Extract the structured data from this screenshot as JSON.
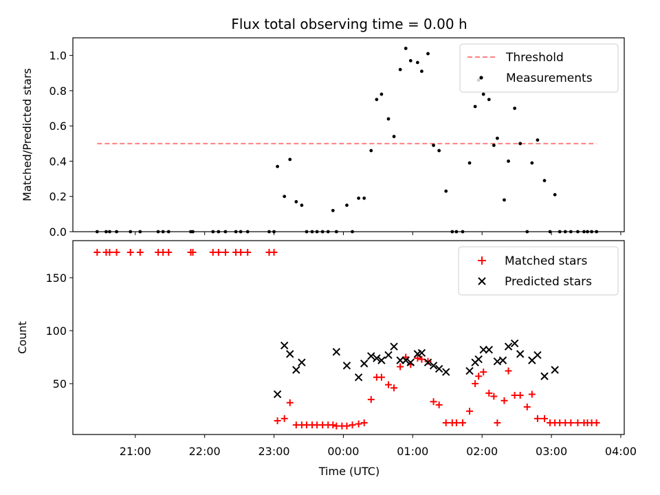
{
  "chart_data": {
    "title": "Flux total observing time = 0.00 h",
    "xlabel": "Time (UTC)",
    "x_tick_labels": [
      "21:00",
      "22:00",
      "23:00",
      "00:00",
      "01:00",
      "02:00",
      "03:00",
      "04:00"
    ],
    "x_range_hours": [
      20.1,
      28.05
    ],
    "panels": [
      {
        "name": "ratio",
        "type": "scatter",
        "ylabel": "Matched/Predicted stars",
        "ylim": [
          0,
          1.1
        ],
        "y_ticks": [
          "0.0",
          "0.2",
          "0.4",
          "0.6",
          "0.8",
          "1.0"
        ],
        "y_tick_values": [
          0,
          0.2,
          0.4,
          0.6,
          0.8,
          1.0
        ],
        "legend": {
          "placement": "top-right",
          "entries": [
            "Threshold",
            "Measurements"
          ]
        },
        "threshold": {
          "name": "Threshold",
          "value": 0.5,
          "x_start": 20.45,
          "x_end": 27.65,
          "color": "#ff7f7f",
          "style": "dashed"
        },
        "measurements": {
          "name": "Measurements",
          "color": "#000000",
          "x": [
            20.45,
            20.58,
            20.63,
            20.73,
            20.93,
            21.07,
            21.33,
            21.4,
            21.48,
            21.8,
            21.83,
            22.12,
            22.2,
            22.3,
            22.45,
            22.52,
            22.62,
            22.93,
            23.0,
            23.05,
            23.15,
            23.23,
            23.32,
            23.4,
            23.47,
            23.55,
            23.62,
            23.7,
            23.78,
            23.85,
            23.9,
            24.05,
            24.13,
            24.22,
            24.3,
            24.4,
            24.48,
            24.55,
            24.65,
            24.73,
            24.82,
            24.9,
            24.97,
            25.07,
            25.13,
            25.22,
            25.3,
            25.38,
            25.48,
            25.57,
            25.63,
            25.72,
            25.82,
            25.9,
            25.95,
            26.02,
            26.1,
            26.17,
            26.22,
            26.32,
            26.38,
            26.47,
            26.55,
            26.65,
            26.72,
            26.8,
            26.9,
            26.98,
            27.05,
            27.12,
            27.2,
            27.28,
            27.38,
            27.47,
            27.52,
            27.58,
            27.65
          ],
          "y": [
            0,
            0,
            0,
            0,
            0,
            0,
            0,
            0,
            0,
            0,
            0,
            0,
            0,
            0,
            0,
            0,
            0,
            0,
            0,
            0.37,
            0.2,
            0.41,
            0.17,
            0.15,
            0,
            0,
            0,
            0,
            0,
            0.12,
            0,
            0.15,
            0,
            0.19,
            0.19,
            0.46,
            0.75,
            0.78,
            0.64,
            0.54,
            0.92,
            1.04,
            0.97,
            0.96,
            0.91,
            1.01,
            0.49,
            0.46,
            0.23,
            0,
            0,
            0,
            0.39,
            0.71,
            0.86,
            0.78,
            0.75,
            0.49,
            0.53,
            0.18,
            0.4,
            0.7,
            0.5,
            0,
            0.39,
            0.52,
            0.29,
            0,
            0.21,
            0,
            0,
            0,
            0,
            0,
            0,
            0,
            0
          ]
        }
      },
      {
        "name": "counts",
        "type": "scatter",
        "ylabel": "Count",
        "ylim": [
          2,
          185
        ],
        "y_ticks": [
          "50",
          "100",
          "150"
        ],
        "y_tick_values": [
          50,
          100,
          150
        ],
        "legend": {
          "placement": "top-right",
          "entries": [
            "Matched stars",
            "Predicted stars"
          ]
        },
        "series": [
          {
            "name": "Matched stars",
            "marker": "plus",
            "color": "#ff0000",
            "x": [
              20.45,
              20.58,
              20.63,
              20.73,
              20.93,
              21.07,
              21.33,
              21.4,
              21.48,
              21.8,
              21.83,
              22.12,
              22.2,
              22.3,
              22.45,
              22.52,
              22.62,
              22.93,
              23.0,
              23.05,
              23.15,
              23.23,
              23.32,
              23.4,
              23.47,
              23.55,
              23.62,
              23.7,
              23.78,
              23.85,
              23.9,
              23.98,
              24.05,
              24.13,
              24.22,
              24.3,
              24.4,
              24.48,
              24.55,
              24.65,
              24.73,
              24.82,
              24.9,
              24.97,
              25.07,
              25.13,
              25.22,
              25.3,
              25.38,
              25.48,
              25.57,
              25.63,
              25.72,
              25.82,
              25.9,
              25.95,
              26.02,
              26.1,
              26.17,
              26.22,
              26.32,
              26.38,
              26.47,
              26.55,
              26.65,
              26.72,
              26.8,
              26.9,
              26.98,
              27.05,
              27.12,
              27.2,
              27.28,
              27.38,
              27.47,
              27.52,
              27.58,
              27.65
            ],
            "y": [
              174,
              174,
              174,
              174,
              174,
              174,
              174,
              174,
              174,
              174,
              174,
              174,
              174,
              174,
              174,
              174,
              174,
              174,
              174,
              15,
              17,
              32,
              11,
              11,
              11,
              11,
              11,
              11,
              11,
              11,
              10,
              10,
              10,
              11,
              12,
              13,
              35,
              56,
              56,
              49,
              46,
              66,
              75,
              68,
              74,
              73,
              71,
              33,
              30,
              13,
              13,
              13,
              13,
              24,
              50,
              57,
              61,
              41,
              38,
              13,
              34,
              62,
              39,
              39,
              28,
              40,
              17,
              17,
              13,
              13,
              13,
              13,
              13,
              13,
              13,
              13,
              13,
              13
            ]
          },
          {
            "name": "Predicted stars",
            "marker": "x",
            "color": "#000000",
            "x": [
              23.05,
              23.15,
              23.23,
              23.32,
              23.4,
              23.9,
              24.05,
              24.22,
              24.3,
              24.4,
              24.48,
              24.55,
              24.65,
              24.73,
              24.82,
              24.9,
              24.97,
              25.07,
              25.13,
              25.22,
              25.3,
              25.38,
              25.48,
              25.82,
              25.9,
              25.95,
              26.02,
              26.1,
              26.22,
              26.3,
              26.38,
              26.47,
              26.55,
              26.72,
              26.8,
              26.9,
              27.05
            ],
            "y": [
              40,
              86,
              78,
              63,
              70,
              80,
              67,
              56,
              69,
              76,
              74,
              72,
              77,
              85,
              72,
              72,
              70,
              78,
              79,
              70,
              67,
              64,
              61,
              62,
              70,
              73,
              82,
              82,
              71,
              72,
              85,
              88,
              78,
              72,
              77,
              57,
              63
            ]
          }
        ]
      }
    ]
  }
}
